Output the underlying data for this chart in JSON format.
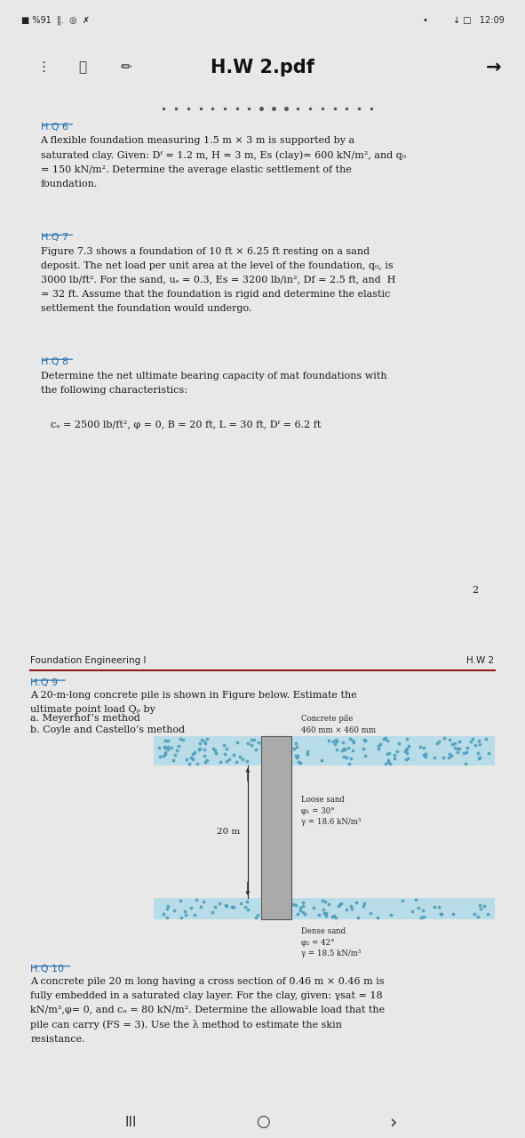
{
  "bg_color": "#e8e8e8",
  "page1_bg": "#ffffff",
  "page2_bg": "#ffffff",
  "header_title": "H.W 2.pdf",
  "hq6_label": "H.Q 6",
  "hq6_body": "A flexible foundation measuring 1.5 m × 3 m is supported by a\nsaturated clay. Given: Dᶠ = 1.2 m, H = 3 m, Es (clay)= 600 kN/m², and q₀\n= 150 kN/m². Determine the average elastic settlement of the\nfoundation.",
  "hq7_label": "H.Q 7",
  "hq7_body": "Figure 7.3 shows a foundation of 10 ft × 6.25 ft resting on a sand\ndeposit. The net load per unit area at the level of the foundation, q₀, is\n3000 lb/ft². For the sand, uₛ = 0.3, Es = 3200 lb/in², Df = 2.5 ft, and  H\n= 32 ft. Assume that the foundation is rigid and determine the elastic\nsettlement the foundation would undergo.",
  "hq8_label": "H.Q 8",
  "hq8_body": "Determine the net ultimate bearing capacity of mat foundations with\nthe following characteristics:",
  "hq8_formula": "cₐ = 2500 lb/ft², φ = 0, B = 20 ft, L = 30 ft, Dᶠ = 6.2 ft",
  "page_num_1": "2",
  "footer_left": "Foundation Engineering I",
  "footer_right": "H.W 2",
  "hq9_label": "H.Q 9",
  "hq9_body": "A 20-m-long concrete pile is shown in Figure below. Estimate the\nultimate point load Qₚ by",
  "hq9_a": "a. Meyerhof’s method",
  "hq9_b": "b. Coyle and Castello’s method",
  "pile_label": "Concrete pile\n460 mm × 460 mm",
  "loose_sand_label": "Loose sand\nφ₁ = 30°\nγ = 18.6 kN/m³",
  "dense_sand_label": "Dense sand\nφ₂ = 42°\nγ = 18.5 kN/m³",
  "pile_length_label": "20 m",
  "hq10_label": "H.Q 10",
  "hq10_body": "A concrete pile 20 m long having a cross section of 0.46 m × 0.46 m is\nfully embedded in a saturated clay layer. For the clay, given: γsat = 18\nkN/m³,φ= 0, and cᵤ = 80 kN/m². Determine the allowable load that the\npile can carry (FS = 3). Use the λ method to estimate the skin\nresistance.",
  "link_color": "#1a6aab",
  "text_color": "#1a1a1a",
  "header_line_color": "#8b1a1a",
  "sand_color": "#b8dce8",
  "sand_dot_color": "#4a9ab8",
  "pile_color": "#aaaaaa",
  "pile_outline": "#555555",
  "nav_color": "#333333"
}
